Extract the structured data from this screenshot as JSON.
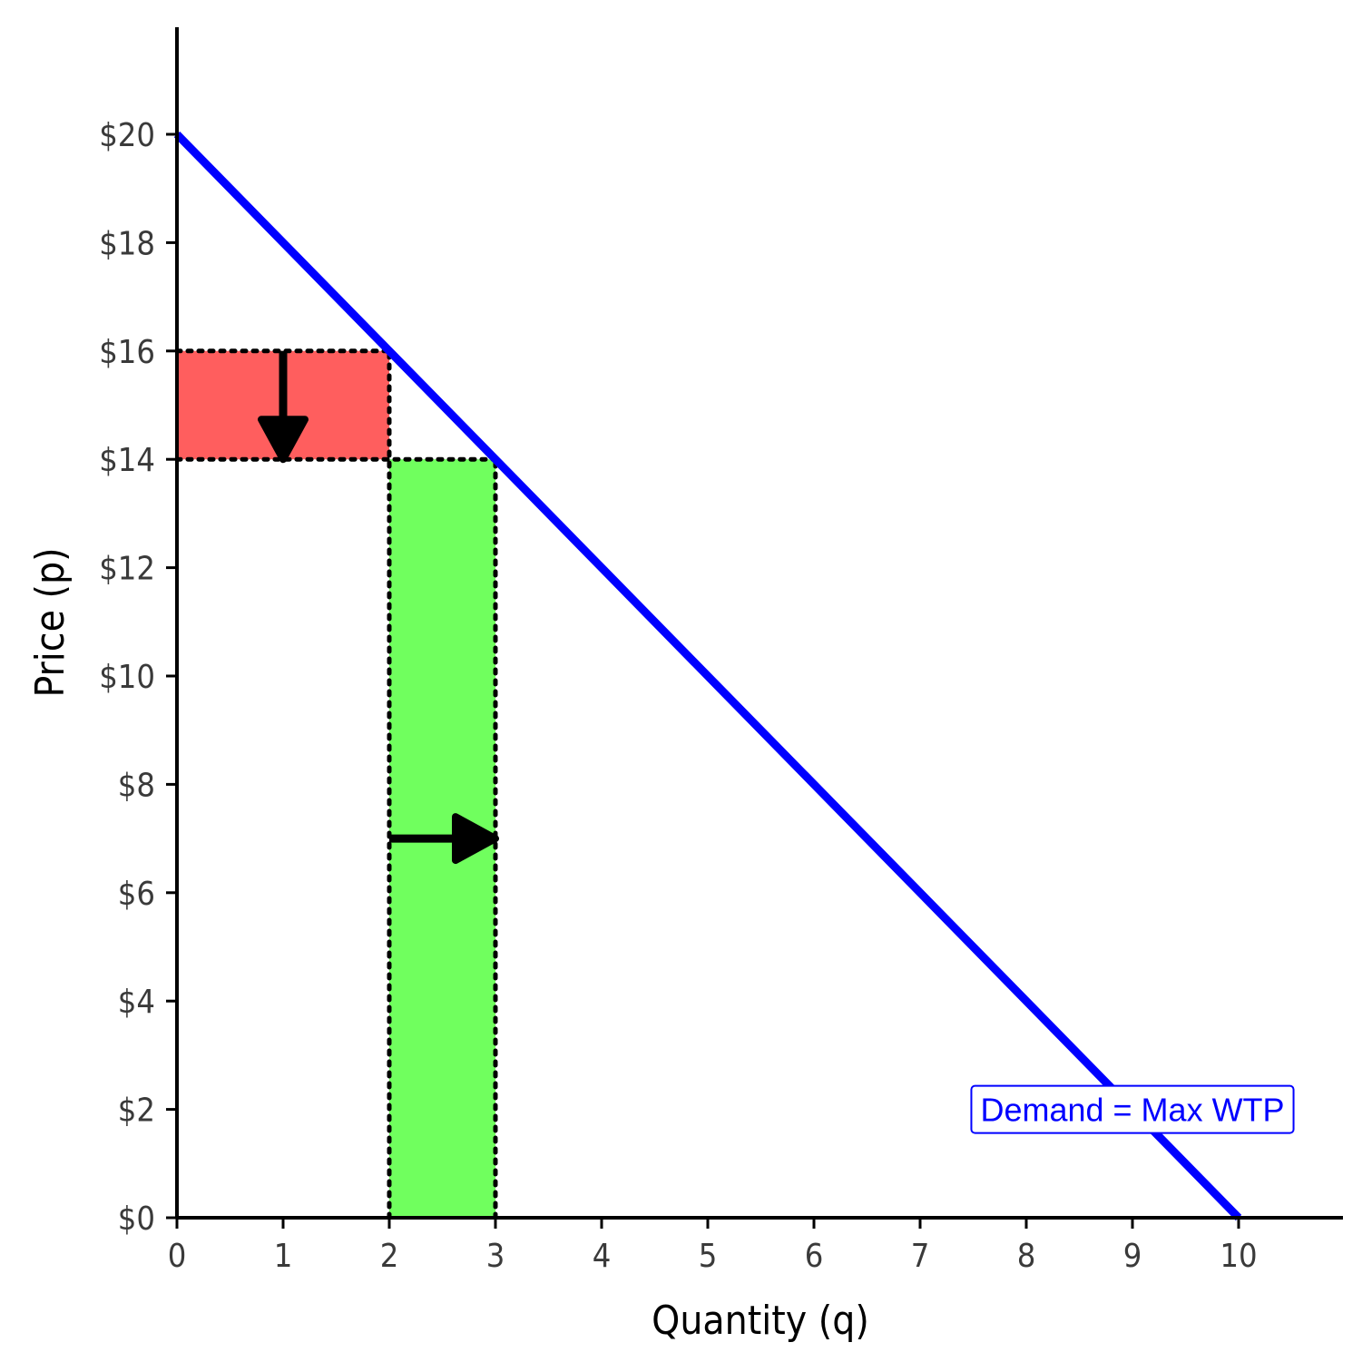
{
  "chart_data": {
    "type": "line",
    "xlabel": "Quantity (q)",
    "ylabel": "Price (p)",
    "xlim": [
      0,
      11
    ],
    "ylim": [
      0,
      22
    ],
    "x_ticks": [
      0,
      1,
      2,
      3,
      4,
      5,
      6,
      7,
      8,
      9,
      10
    ],
    "x_tick_labels": [
      "0",
      "1",
      "2",
      "3",
      "4",
      "5",
      "6",
      "7",
      "8",
      "9",
      "10"
    ],
    "y_ticks": [
      0,
      2,
      4,
      6,
      8,
      10,
      12,
      14,
      16,
      18,
      20
    ],
    "y_tick_labels": [
      "$0",
      "$2",
      "$4",
      "$6",
      "$8",
      "$10",
      "$12",
      "$14",
      "$16",
      "$18",
      "$20"
    ],
    "grid": false,
    "series": [
      {
        "name": "Demand = Max WTP",
        "color": "#0000ff",
        "x": [
          0,
          10
        ],
        "y": [
          20,
          0
        ]
      }
    ],
    "regions": [
      {
        "id": "price-decrease-area",
        "x": [
          0,
          2
        ],
        "y": [
          14,
          16
        ],
        "color": "#ff5e5e"
      },
      {
        "id": "quantity-increase-area",
        "x": [
          2,
          3
        ],
        "y": [
          0,
          14
        ],
        "color": "#70ff5e"
      }
    ],
    "guides": [
      {
        "from": [
          0,
          16
        ],
        "to": [
          2,
          16
        ]
      },
      {
        "from": [
          0,
          14
        ],
        "to": [
          3,
          14
        ]
      },
      {
        "from": [
          2,
          0
        ],
        "to": [
          2,
          16
        ]
      },
      {
        "from": [
          3,
          0
        ],
        "to": [
          3,
          14
        ]
      }
    ],
    "arrows": [
      {
        "id": "price-drop-arrow",
        "from": [
          1,
          16
        ],
        "to": [
          1,
          14
        ]
      },
      {
        "id": "quantity-rise-arrow",
        "from": [
          2,
          7
        ],
        "to": [
          3,
          7
        ]
      }
    ],
    "annotation": {
      "text": "Demand = Max WTP",
      "x": 9,
      "y": 2,
      "color": "#0000ff"
    }
  }
}
